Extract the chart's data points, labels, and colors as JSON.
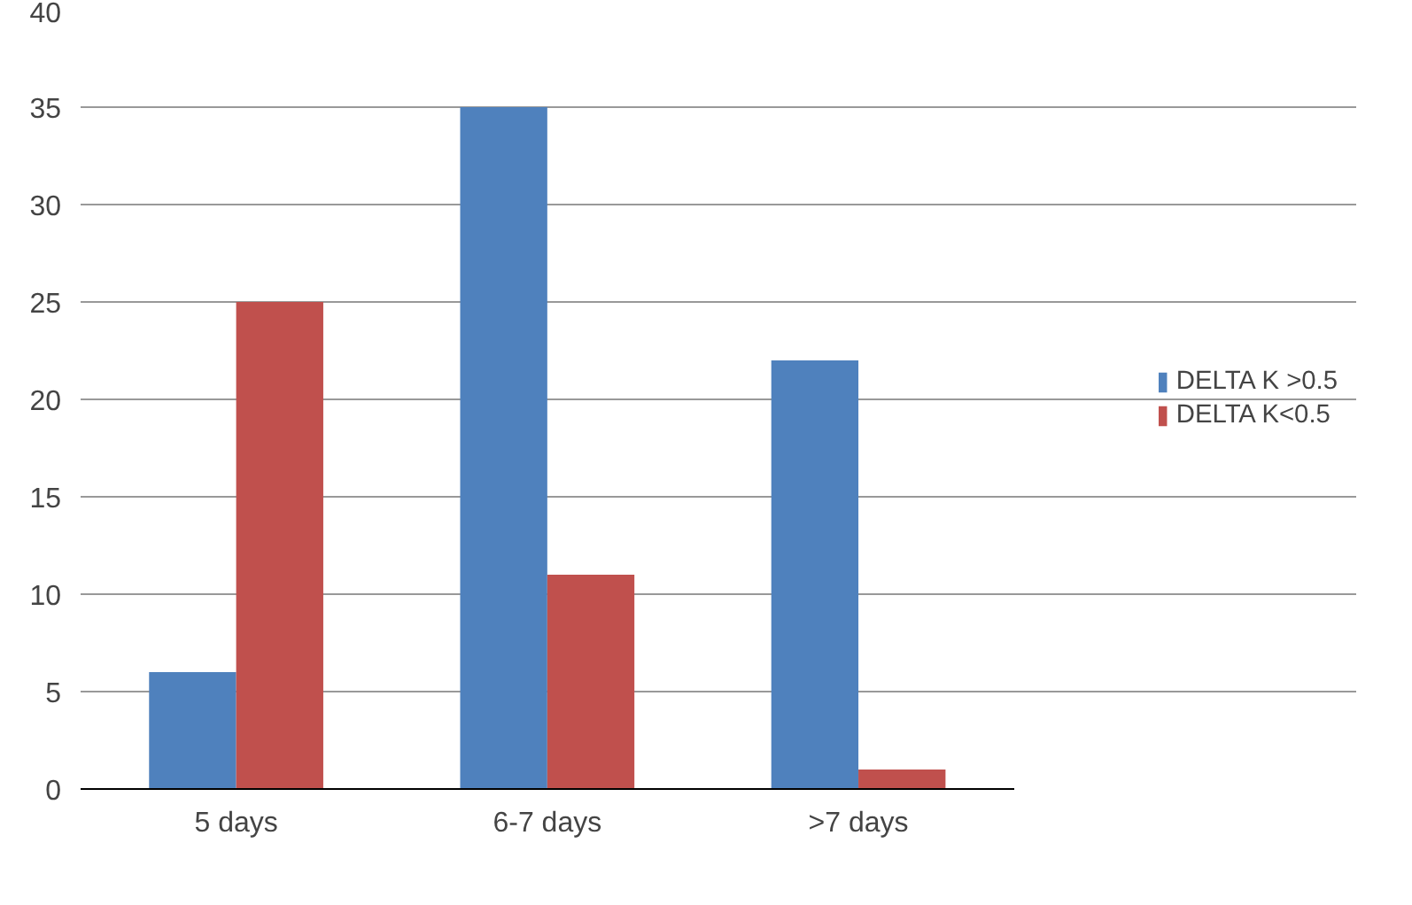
{
  "chart_data": {
    "type": "bar",
    "categories": [
      "5 days",
      "6-7 days",
      ">7 days"
    ],
    "series": [
      {
        "name": "DELTA K >0.5",
        "color": "#4f81bd",
        "values": [
          6,
          35,
          22
        ]
      },
      {
        "name": "DELTA K<0.5",
        "color": "#c0504d",
        "values": [
          25,
          11,
          1
        ]
      }
    ],
    "ylim": [
      0,
      40
    ],
    "yticks": [
      0,
      5,
      10,
      15,
      20,
      25,
      30,
      35,
      40
    ],
    "grid": "y",
    "legend": "right"
  }
}
